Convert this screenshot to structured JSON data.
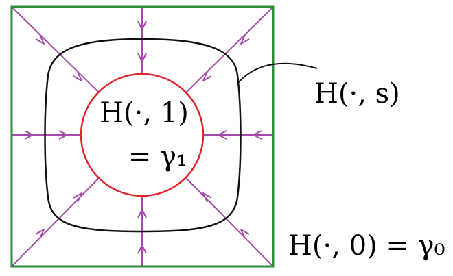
{
  "colors": {
    "square": "#2e8b3a",
    "circle": "#e0262b",
    "curve": "#111111",
    "arrows": "#a64aa9",
    "text": "#000000"
  },
  "labels": {
    "inner_line1": "H(·, 1)",
    "inner_line2": "= γ₁",
    "curve_label": "H(·, s)",
    "outer_label": "H(·, 0) = γ₀"
  }
}
